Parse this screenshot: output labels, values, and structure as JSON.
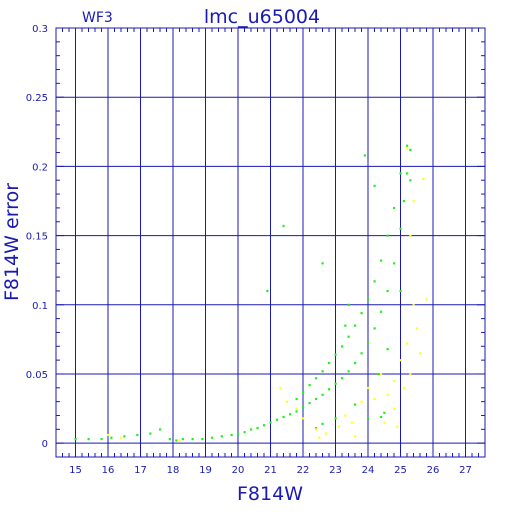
{
  "chart_data": {
    "type": "scatter",
    "title": "lmc_u65004",
    "panel_label": "WF3",
    "xlabel": "F814W",
    "ylabel": "F814W error",
    "xlim": [
      14.4,
      27.6
    ],
    "ylim": [
      -0.01,
      0.3
    ],
    "x_ticks": [
      15,
      16,
      17,
      18,
      19,
      20,
      21,
      22,
      23,
      24,
      25,
      26,
      27
    ],
    "y_ticks": [
      0,
      0.05,
      0.1,
      0.15,
      0.2,
      0.25,
      0.3
    ],
    "y_tick_labels": [
      "0",
      "0.05",
      "0.1",
      "0.15",
      "0.2",
      "0.25",
      "0.3"
    ],
    "grid": true,
    "colors": {
      "axis": "#1a1ab3",
      "grid": "#1a1ab3",
      "series_main": "#22ee22",
      "series_secondary": "#ffff22"
    },
    "series": [
      {
        "color": "#22ee22",
        "points": [
          [
            15.0,
            0.003
          ],
          [
            15.4,
            0.003
          ],
          [
            15.8,
            0.003
          ],
          [
            16.1,
            0.004
          ],
          [
            16.5,
            0.005
          ],
          [
            16.9,
            0.006
          ],
          [
            17.3,
            0.007
          ],
          [
            17.6,
            0.01
          ],
          [
            17.9,
            0.003
          ],
          [
            18.1,
            0.002
          ],
          [
            18.3,
            0.003
          ],
          [
            18.6,
            0.003
          ],
          [
            18.9,
            0.003
          ],
          [
            19.2,
            0.004
          ],
          [
            19.5,
            0.005
          ],
          [
            19.8,
            0.006
          ],
          [
            20.0,
            0.007
          ],
          [
            20.2,
            0.008
          ],
          [
            20.4,
            0.01
          ],
          [
            20.6,
            0.011
          ],
          [
            20.8,
            0.013
          ],
          [
            21.0,
            0.015
          ],
          [
            21.2,
            0.017
          ],
          [
            21.4,
            0.019
          ],
          [
            21.6,
            0.021
          ],
          [
            21.8,
            0.023
          ],
          [
            22.0,
            0.026
          ],
          [
            22.2,
            0.029
          ],
          [
            22.4,
            0.032
          ],
          [
            22.6,
            0.035
          ],
          [
            22.8,
            0.039
          ],
          [
            23.0,
            0.043
          ],
          [
            23.2,
            0.047
          ],
          [
            23.4,
            0.052
          ],
          [
            23.6,
            0.058
          ],
          [
            23.8,
            0.065
          ],
          [
            24.0,
            0.073
          ],
          [
            24.2,
            0.083
          ],
          [
            24.4,
            0.095
          ],
          [
            24.6,
            0.11
          ],
          [
            24.8,
            0.13
          ],
          [
            25.0,
            0.155
          ],
          [
            25.1,
            0.175
          ],
          [
            25.2,
            0.195
          ],
          [
            25.3,
            0.212
          ],
          [
            21.8,
            0.032
          ],
          [
            22.0,
            0.037
          ],
          [
            22.2,
            0.042
          ],
          [
            22.4,
            0.047
          ],
          [
            22.6,
            0.052
          ],
          [
            22.8,
            0.058
          ],
          [
            23.0,
            0.064
          ],
          [
            23.2,
            0.07
          ],
          [
            23.4,
            0.077
          ],
          [
            23.6,
            0.085
          ],
          [
            23.8,
            0.094
          ],
          [
            24.0,
            0.104
          ],
          [
            24.2,
            0.117
          ],
          [
            24.4,
            0.132
          ],
          [
            24.6,
            0.15
          ],
          [
            24.8,
            0.17
          ],
          [
            25.0,
            0.195
          ],
          [
            25.2,
            0.215
          ],
          [
            20.9,
            0.11
          ],
          [
            21.4,
            0.157
          ],
          [
            22.6,
            0.13
          ],
          [
            23.3,
            0.085
          ],
          [
            23.4,
            0.1
          ],
          [
            23.9,
            0.208
          ],
          [
            24.2,
            0.186
          ],
          [
            24.5,
            0.022
          ],
          [
            24.4,
            0.019
          ],
          [
            24.0,
            0.018
          ],
          [
            22.4,
            0.011
          ],
          [
            22.6,
            0.014
          ],
          [
            23.0,
            0.018
          ],
          [
            23.6,
            0.028
          ],
          [
            24.3,
            0.05
          ],
          [
            24.6,
            0.068
          ],
          [
            25.0,
            0.11
          ],
          [
            25.3,
            0.19
          ]
        ]
      },
      {
        "color": "#ffff22",
        "points": [
          [
            16.0,
            0.006
          ],
          [
            16.4,
            0.004
          ],
          [
            18.2,
            0.002
          ],
          [
            21.5,
            0.03
          ],
          [
            21.8,
            0.025
          ],
          [
            21.3,
            0.04
          ],
          [
            22.0,
            0.018
          ],
          [
            22.4,
            0.01
          ],
          [
            22.7,
            0.007
          ],
          [
            23.1,
            0.012
          ],
          [
            23.3,
            0.02
          ],
          [
            23.5,
            0.015
          ],
          [
            23.8,
            0.03
          ],
          [
            24.0,
            0.04
          ],
          [
            24.2,
            0.032
          ],
          [
            24.4,
            0.05
          ],
          [
            24.6,
            0.035
          ],
          [
            24.8,
            0.045
          ],
          [
            25.0,
            0.06
          ],
          [
            25.2,
            0.072
          ],
          [
            25.1,
            0.04
          ],
          [
            25.3,
            0.05
          ],
          [
            25.5,
            0.083
          ],
          [
            25.6,
            0.065
          ],
          [
            25.4,
            0.1
          ],
          [
            25.8,
            0.104
          ],
          [
            25.3,
            0.15
          ],
          [
            25.4,
            0.175
          ],
          [
            25.7,
            0.191
          ],
          [
            25.2,
            0.213
          ],
          [
            24.5,
            0.015
          ],
          [
            23.6,
            0.005
          ],
          [
            22.5,
            0.004
          ],
          [
            24.8,
            0.025
          ],
          [
            24.9,
            0.012
          ]
        ]
      }
    ]
  }
}
